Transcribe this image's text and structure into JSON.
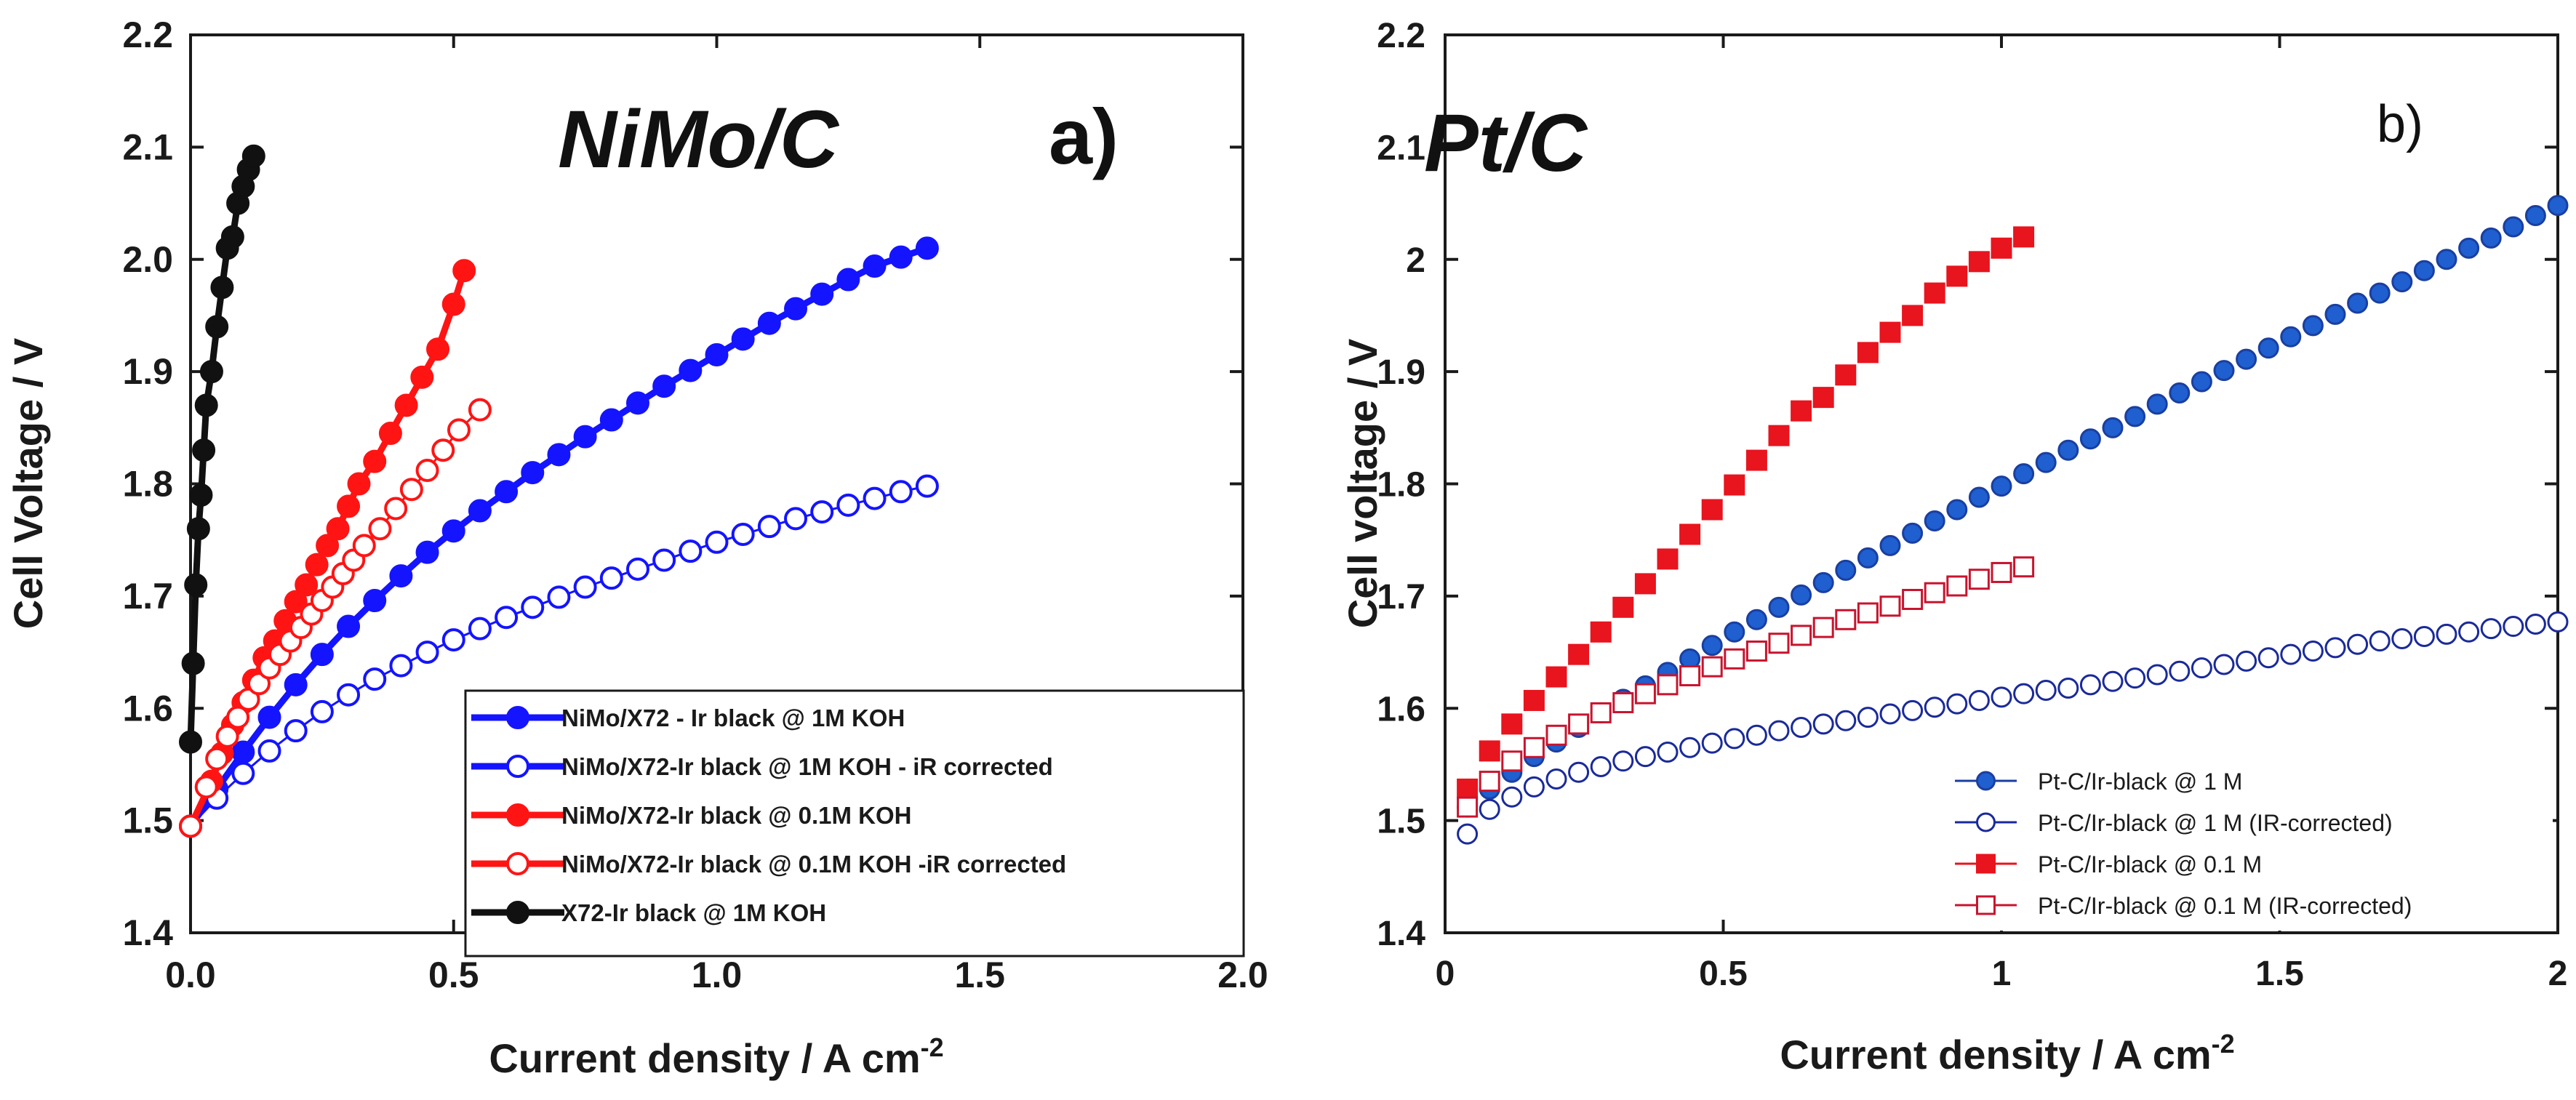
{
  "chart_data": [
    {
      "type": "scatter",
      "panel_label": "a)",
      "title": "NiMo/C",
      "xlabel_main": "Current density / A cm",
      "xlabel_sup": "-2",
      "ylabel": "Cell Voltage / V",
      "xlim": [
        0.0,
        2.0
      ],
      "ylim": [
        1.4,
        2.2
      ],
      "xticks": [
        0.0,
        0.5,
        1.0,
        1.5,
        2.0
      ],
      "xtick_labels": [
        "0.0",
        "0.5",
        "1.0",
        "1.5",
        "2.0"
      ],
      "yticks": [
        1.4,
        1.5,
        1.6,
        1.7,
        1.8,
        1.9,
        2.0,
        2.1,
        2.2
      ],
      "ytick_labels": [
        "1.4",
        "1.5",
        "1.6",
        "1.7",
        "1.8",
        "1.9",
        "2.0",
        "2.1",
        "2.2"
      ],
      "legend_position": "bottom-right",
      "series": [
        {
          "name": "NiMo/X72 - Ir black @ 1M KOH",
          "color": "#1414ff",
          "marker": "circle",
          "filled": true,
          "line": true,
          "x": [
            0.0,
            0.05,
            0.1,
            0.15,
            0.2,
            0.25,
            0.3,
            0.35,
            0.4,
            0.45,
            0.5,
            0.55,
            0.6,
            0.65,
            0.7,
            0.75,
            0.8,
            0.85,
            0.9,
            0.95,
            1.0,
            1.05,
            1.1,
            1.15,
            1.2,
            1.25,
            1.3,
            1.35,
            1.4
          ],
          "y": [
            1.495,
            1.528,
            1.561,
            1.592,
            1.621,
            1.648,
            1.673,
            1.696,
            1.718,
            1.739,
            1.758,
            1.776,
            1.793,
            1.81,
            1.826,
            1.842,
            1.857,
            1.872,
            1.887,
            1.901,
            1.915,
            1.929,
            1.943,
            1.956,
            1.969,
            1.982,
            1.994,
            2.002,
            2.01
          ]
        },
        {
          "name": "NiMo/X72-Ir black @ 1M KOH - iR corrected",
          "color": "#1414ff",
          "marker": "circle",
          "filled": false,
          "line": true,
          "x": [
            0.0,
            0.05,
            0.1,
            0.15,
            0.2,
            0.25,
            0.3,
            0.35,
            0.4,
            0.45,
            0.5,
            0.55,
            0.6,
            0.65,
            0.7,
            0.75,
            0.8,
            0.85,
            0.9,
            0.95,
            1.0,
            1.05,
            1.1,
            1.15,
            1.2,
            1.25,
            1.3,
            1.35,
            1.4
          ],
          "y": [
            1.495,
            1.52,
            1.542,
            1.562,
            1.58,
            1.597,
            1.612,
            1.626,
            1.638,
            1.65,
            1.661,
            1.671,
            1.681,
            1.69,
            1.699,
            1.708,
            1.716,
            1.724,
            1.732,
            1.74,
            1.748,
            1.755,
            1.762,
            1.769,
            1.775,
            1.781,
            1.787,
            1.793,
            1.798
          ]
        },
        {
          "name": "NiMo/X72-Ir black @ 0.1M KOH",
          "color": "#ff1414",
          "marker": "circle",
          "filled": true,
          "line": true,
          "x": [
            0.0,
            0.04,
            0.06,
            0.08,
            0.1,
            0.12,
            0.14,
            0.16,
            0.18,
            0.2,
            0.22,
            0.24,
            0.26,
            0.28,
            0.3,
            0.32,
            0.35,
            0.38,
            0.41,
            0.44,
            0.47,
            0.5,
            0.52
          ],
          "y": [
            1.495,
            1.535,
            1.56,
            1.585,
            1.605,
            1.625,
            1.645,
            1.66,
            1.678,
            1.695,
            1.71,
            1.728,
            1.745,
            1.76,
            1.78,
            1.8,
            1.82,
            1.845,
            1.87,
            1.895,
            1.92,
            1.96,
            1.99
          ]
        },
        {
          "name": "NiMo/X72-Ir black @ 0.1M KOH -iR corrected",
          "color": "#ff1414",
          "marker": "circle",
          "filled": false,
          "line": true,
          "x": [
            0.0,
            0.03,
            0.05,
            0.07,
            0.09,
            0.11,
            0.13,
            0.15,
            0.17,
            0.19,
            0.21,
            0.23,
            0.25,
            0.27,
            0.29,
            0.31,
            0.33,
            0.36,
            0.39,
            0.42,
            0.45,
            0.48,
            0.51,
            0.55
          ],
          "y": [
            1.495,
            1.53,
            1.555,
            1.575,
            1.592,
            1.608,
            1.622,
            1.636,
            1.648,
            1.66,
            1.672,
            1.684,
            1.696,
            1.708,
            1.72,
            1.732,
            1.745,
            1.76,
            1.778,
            1.795,
            1.812,
            1.83,
            1.848,
            1.866
          ]
        },
        {
          "name": "X72-Ir black @ 1M KOH",
          "color": "#111111",
          "marker": "circle",
          "filled": true,
          "line": true,
          "x": [
            0.0,
            0.005,
            0.01,
            0.015,
            0.02,
            0.025,
            0.03,
            0.04,
            0.05,
            0.06,
            0.07,
            0.08,
            0.09,
            0.1,
            0.11,
            0.12
          ],
          "y": [
            1.57,
            1.64,
            1.71,
            1.76,
            1.79,
            1.83,
            1.87,
            1.9,
            1.94,
            1.975,
            2.01,
            2.02,
            2.05,
            2.065,
            2.08,
            2.092
          ]
        }
      ]
    },
    {
      "type": "scatter",
      "panel_label": "b)",
      "title": "Pt/C",
      "xlabel_main": "Current density / A cm",
      "xlabel_sup": "-2",
      "ylabel": "Cell voltage / V",
      "xlim": [
        0,
        2
      ],
      "ylim": [
        1.4,
        2.2
      ],
      "xticks": [
        0,
        0.5,
        1,
        1.5,
        2
      ],
      "xtick_labels": [
        "0",
        "0.5",
        "1",
        "1.5",
        "2"
      ],
      "yticks": [
        1.4,
        1.5,
        1.6,
        1.7,
        1.8,
        1.9,
        2.0,
        2.1,
        2.2
      ],
      "ytick_labels": [
        "1.4",
        "1.5",
        "1.6",
        "1.7",
        "1.8",
        "1.9",
        "2",
        "2.1",
        "2.2"
      ],
      "legend_position": "bottom-right",
      "series": [
        {
          "name": "Pt-C/Ir-black @ 1 M",
          "color": "#1f5fd0",
          "stroke": "#1a3fa0",
          "marker": "circle",
          "filled": true,
          "line": false,
          "x": [
            0.04,
            0.08,
            0.12,
            0.16,
            0.2,
            0.24,
            0.28,
            0.32,
            0.36,
            0.4,
            0.44,
            0.48,
            0.52,
            0.56,
            0.6,
            0.64,
            0.68,
            0.72,
            0.76,
            0.8,
            0.84,
            0.88,
            0.92,
            0.96,
            1.0,
            1.04,
            1.08,
            1.12,
            1.16,
            1.2,
            1.24,
            1.28,
            1.32,
            1.36,
            1.4,
            1.44,
            1.48,
            1.52,
            1.56,
            1.6,
            1.64,
            1.68,
            1.72,
            1.76,
            1.8,
            1.84,
            1.88,
            1.92,
            1.96,
            2.0
          ],
          "y": [
            1.512,
            1.528,
            1.543,
            1.557,
            1.57,
            1.583,
            1.596,
            1.608,
            1.62,
            1.632,
            1.644,
            1.656,
            1.668,
            1.679,
            1.69,
            1.701,
            1.712,
            1.723,
            1.734,
            1.745,
            1.756,
            1.767,
            1.777,
            1.788,
            1.798,
            1.809,
            1.819,
            1.83,
            1.84,
            1.85,
            1.86,
            1.871,
            1.881,
            1.891,
            1.901,
            1.911,
            1.921,
            1.931,
            1.941,
            1.951,
            1.961,
            1.97,
            1.98,
            1.99,
            2.0,
            2.01,
            2.019,
            2.029,
            2.039,
            2.048
          ]
        },
        {
          "name": "Pt-C/Ir-black @ 1 M (IR-corrected)",
          "color": "#1a2a9a",
          "marker": "circle",
          "filled": false,
          "line": false,
          "x": [
            0.04,
            0.08,
            0.12,
            0.16,
            0.2,
            0.24,
            0.28,
            0.32,
            0.36,
            0.4,
            0.44,
            0.48,
            0.52,
            0.56,
            0.6,
            0.64,
            0.68,
            0.72,
            0.76,
            0.8,
            0.84,
            0.88,
            0.92,
            0.96,
            1.0,
            1.04,
            1.08,
            1.12,
            1.16,
            1.2,
            1.24,
            1.28,
            1.32,
            1.36,
            1.4,
            1.44,
            1.48,
            1.52,
            1.56,
            1.6,
            1.64,
            1.68,
            1.72,
            1.76,
            1.8,
            1.84,
            1.88,
            1.92,
            1.96,
            2.0
          ],
          "y": [
            1.488,
            1.51,
            1.521,
            1.53,
            1.537,
            1.543,
            1.548,
            1.553,
            1.557,
            1.561,
            1.565,
            1.569,
            1.573,
            1.576,
            1.58,
            1.583,
            1.586,
            1.589,
            1.592,
            1.595,
            1.598,
            1.601,
            1.604,
            1.607,
            1.61,
            1.613,
            1.616,
            1.618,
            1.621,
            1.624,
            1.627,
            1.63,
            1.633,
            1.636,
            1.639,
            1.642,
            1.645,
            1.648,
            1.651,
            1.654,
            1.657,
            1.66,
            1.662,
            1.664,
            1.666,
            1.668,
            1.671,
            1.673,
            1.675,
            1.677
          ]
        },
        {
          "name": "Pt-C/Ir-black @ 0.1 M",
          "color": "#e8141e",
          "marker": "square",
          "filled": true,
          "line": false,
          "x": [
            0.04,
            0.08,
            0.12,
            0.16,
            0.2,
            0.24,
            0.28,
            0.32,
            0.36,
            0.4,
            0.44,
            0.48,
            0.52,
            0.56,
            0.6,
            0.64,
            0.68,
            0.72,
            0.76,
            0.8,
            0.84,
            0.88,
            0.92,
            0.96,
            1.0,
            1.04
          ],
          "y": [
            1.528,
            1.562,
            1.586,
            1.607,
            1.628,
            1.648,
            1.668,
            1.69,
            1.711,
            1.733,
            1.755,
            1.777,
            1.799,
            1.821,
            1.843,
            1.865,
            1.877,
            1.897,
            1.917,
            1.935,
            1.95,
            1.97,
            1.985,
            1.998,
            2.01,
            2.02
          ]
        },
        {
          "name": "Pt-C/Ir-black @ 0.1 M (IR-corrected)",
          "color": "#c8142e",
          "marker": "square",
          "filled": false,
          "line": false,
          "x": [
            0.04,
            0.08,
            0.12,
            0.16,
            0.2,
            0.24,
            0.28,
            0.32,
            0.36,
            0.4,
            0.44,
            0.48,
            0.52,
            0.56,
            0.6,
            0.64,
            0.68,
            0.72,
            0.76,
            0.8,
            0.84,
            0.88,
            0.92,
            0.96,
            1.0,
            1.04
          ],
          "y": [
            1.512,
            1.535,
            1.553,
            1.565,
            1.576,
            1.586,
            1.596,
            1.605,
            1.613,
            1.621,
            1.629,
            1.637,
            1.644,
            1.651,
            1.658,
            1.665,
            1.672,
            1.679,
            1.685,
            1.691,
            1.697,
            1.703,
            1.709,
            1.715,
            1.721,
            1.726
          ]
        }
      ]
    }
  ]
}
